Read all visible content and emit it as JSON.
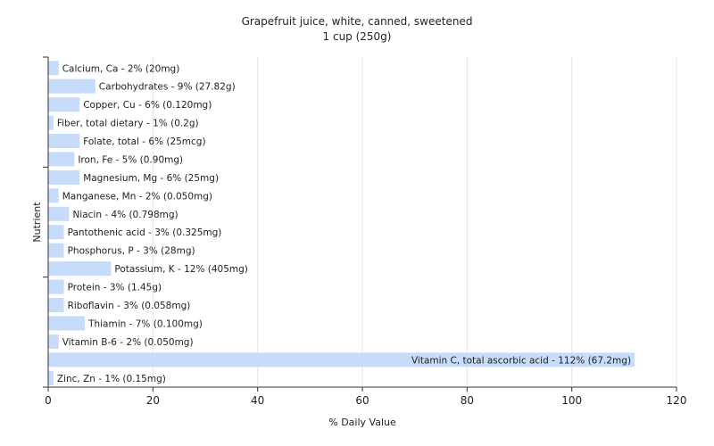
{
  "chart_data": {
    "type": "bar",
    "orientation": "horizontal",
    "title": "Grapefruit juice, white, canned, sweetened",
    "subtitle": "1 cup (250g)",
    "xlabel": "% Daily Value",
    "ylabel": "Nutrient",
    "xlim": [
      0,
      120
    ],
    "xticks": [
      0,
      20,
      40,
      60,
      80,
      100,
      120
    ],
    "grid": "vertical",
    "bar_color": "#c6dcfa",
    "categories": [
      "Calcium, Ca",
      "Carbohydrates",
      "Copper, Cu",
      "Fiber, total dietary",
      "Folate, total",
      "Iron, Fe",
      "Magnesium, Mg",
      "Manganese, Mn",
      "Niacin",
      "Pantothenic acid",
      "Phosphorus, P",
      "Potassium, K",
      "Protein",
      "Riboflavin",
      "Thiamin",
      "Vitamin B-6",
      "Vitamin C, total ascorbic acid",
      "Zinc, Zn"
    ],
    "values": [
      2,
      9,
      6,
      1,
      6,
      5,
      6,
      2,
      4,
      3,
      3,
      12,
      3,
      3,
      7,
      2,
      112,
      1
    ],
    "labels": [
      "Calcium, Ca - 2% (20mg)",
      "Carbohydrates - 9% (27.82g)",
      "Copper, Cu - 6% (0.120mg)",
      "Fiber, total dietary - 1% (0.2g)",
      "Folate, total - 6% (25mcg)",
      "Iron, Fe - 5% (0.90mg)",
      "Magnesium, Mg - 6% (25mg)",
      "Manganese, Mn - 2% (0.050mg)",
      "Niacin - 4% (0.798mg)",
      "Pantothenic acid - 3% (0.325mg)",
      "Phosphorus, P - 3% (28mg)",
      "Potassium, K - 12% (405mg)",
      "Protein - 3% (1.45g)",
      "Riboflavin - 3% (0.058mg)",
      "Thiamin - 7% (0.100mg)",
      "Vitamin B-6 - 2% (0.050mg)",
      "Vitamin C, total ascorbic acid - 112% (67.2mg)",
      "Zinc, Zn - 1% (0.15mg)"
    ]
  }
}
